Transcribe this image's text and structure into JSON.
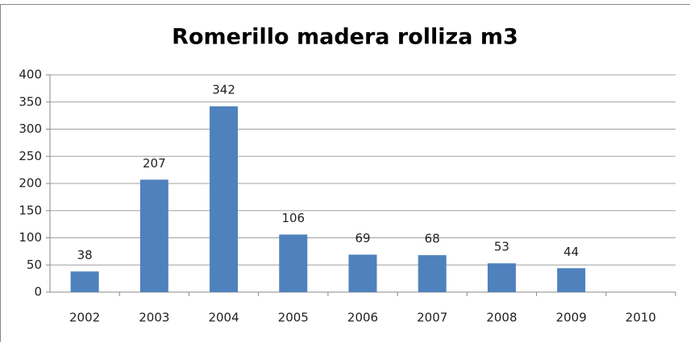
{
  "chart_data": {
    "type": "bar",
    "title": "Romerillo madera rolliza m3",
    "categories": [
      "2002",
      "2003",
      "2004",
      "2005",
      "2006",
      "2007",
      "2008",
      "2009",
      "2010"
    ],
    "values": [
      38,
      207,
      342,
      106,
      69,
      68,
      53,
      44,
      null
    ],
    "color": "#4f81bd",
    "ylim": [
      0,
      400
    ],
    "yticks": [
      0,
      50,
      100,
      150,
      200,
      250,
      300,
      350,
      400
    ],
    "grid": true
  }
}
